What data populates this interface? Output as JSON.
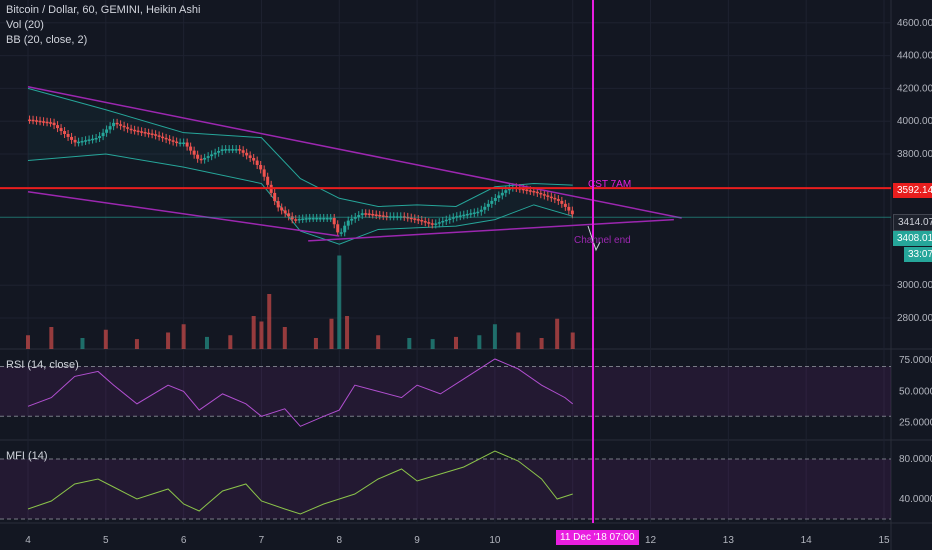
{
  "legend": {
    "title": "Bitcoin / Dollar, 60, GEMINI, Heikin Ashi",
    "vol": "Vol (20)",
    "bb": "BB (20, close, 2)"
  },
  "colors": {
    "background": "#131722",
    "up": "#26a69a",
    "down": "#ef5350",
    "bb": "#26a69a",
    "trendline": "#9c27b0",
    "resistance": "#e91e1e",
    "vline": "#e91ee0",
    "rsi": "#b14fd0",
    "mfi": "#8bc34a"
  },
  "chart_data": [
    {
      "type": "candlestick",
      "title": "Bitcoin / Dollar, 60, GEMINI, Heikin Ashi",
      "x_ticks": [
        "4",
        "5",
        "6",
        "7",
        "8",
        "9",
        "10",
        "11",
        "12",
        "13",
        "14",
        "15"
      ],
      "y_ticks": [
        "4600.00",
        "4400.00",
        "4200.00",
        "4000.00",
        "3800.00",
        "3000.00",
        "2800.00"
      ],
      "ylim": [
        2700,
        4700
      ],
      "resistance_level": 3592.14,
      "current_price_labels": [
        "3414.07",
        "3408.01"
      ],
      "countdown": "33:07",
      "annotations": [
        "CST 7AM",
        "Channel end"
      ],
      "highlighted_time": "11 Dec '18  07:00",
      "close_path": [
        [
          4.0,
          4010
        ],
        [
          4.3,
          3990
        ],
        [
          4.6,
          3870
        ],
        [
          4.9,
          3900
        ],
        [
          5.1,
          3990
        ],
        [
          5.3,
          3950
        ],
        [
          5.6,
          3920
        ],
        [
          5.9,
          3870
        ],
        [
          6.0,
          3870
        ],
        [
          6.2,
          3760
        ],
        [
          6.5,
          3830
        ],
        [
          6.7,
          3830
        ],
        [
          6.9,
          3760
        ],
        [
          7.0,
          3700
        ],
        [
          7.2,
          3480
        ],
        [
          7.4,
          3400
        ],
        [
          7.6,
          3410
        ],
        [
          7.9,
          3410
        ],
        [
          8.0,
          3300
        ],
        [
          8.1,
          3390
        ],
        [
          8.3,
          3440
        ],
        [
          8.6,
          3420
        ],
        [
          8.8,
          3420
        ],
        [
          9.0,
          3400
        ],
        [
          9.2,
          3370
        ],
        [
          9.5,
          3420
        ],
        [
          9.8,
          3450
        ],
        [
          10.0,
          3530
        ],
        [
          10.2,
          3600
        ],
        [
          10.5,
          3570
        ],
        [
          10.8,
          3520
        ],
        [
          10.9,
          3480
        ],
        [
          11.0,
          3430
        ]
      ],
      "bb_upper": [
        [
          4,
          4200
        ],
        [
          5,
          4070
        ],
        [
          6,
          3930
        ],
        [
          7,
          3900
        ],
        [
          7.5,
          3650
        ],
        [
          8,
          3530
        ],
        [
          8.5,
          3480
        ],
        [
          9,
          3490
        ],
        [
          9.5,
          3480
        ],
        [
          10,
          3600
        ],
        [
          10.5,
          3620
        ],
        [
          11,
          3610
        ]
      ],
      "bb_lower": [
        [
          4,
          3760
        ],
        [
          5,
          3800
        ],
        [
          6,
          3720
        ],
        [
          7,
          3620
        ],
        [
          7.5,
          3330
        ],
        [
          8,
          3250
        ],
        [
          8.5,
          3340
        ],
        [
          9,
          3350
        ],
        [
          9.5,
          3360
        ],
        [
          10,
          3400
        ],
        [
          10.5,
          3490
        ],
        [
          11,
          3420
        ]
      ],
      "trendlines": [
        {
          "from": [
            4.0,
            4210
          ],
          "to": [
            12.4,
            3410
          ]
        },
        {
          "from": [
            4.0,
            3570
          ],
          "to": [
            8.0,
            3300
          ]
        },
        {
          "from": [
            7.6,
            3270
          ],
          "to": [
            12.3,
            3400
          ]
        }
      ],
      "volume": [
        [
          4.0,
          25,
          "down"
        ],
        [
          4.3,
          40,
          "down"
        ],
        [
          4.7,
          20,
          "up"
        ],
        [
          5.0,
          35,
          "down"
        ],
        [
          5.4,
          18,
          "down"
        ],
        [
          5.8,
          30,
          "down"
        ],
        [
          6.0,
          45,
          "down"
        ],
        [
          6.3,
          22,
          "up"
        ],
        [
          6.6,
          25,
          "down"
        ],
        [
          6.9,
          60,
          "down"
        ],
        [
          7.0,
          50,
          "down"
        ],
        [
          7.1,
          100,
          "down"
        ],
        [
          7.3,
          40,
          "down"
        ],
        [
          7.7,
          20,
          "down"
        ],
        [
          7.9,
          55,
          "down"
        ],
        [
          8.0,
          170,
          "up"
        ],
        [
          8.1,
          60,
          "down"
        ],
        [
          8.5,
          25,
          "down"
        ],
        [
          8.9,
          20,
          "up"
        ],
        [
          9.2,
          18,
          "up"
        ],
        [
          9.5,
          22,
          "down"
        ],
        [
          9.8,
          25,
          "up"
        ],
        [
          10.0,
          45,
          "up"
        ],
        [
          10.3,
          30,
          "down"
        ],
        [
          10.6,
          20,
          "down"
        ],
        [
          10.8,
          55,
          "down"
        ],
        [
          11.0,
          30,
          "down"
        ]
      ]
    },
    {
      "type": "line",
      "title": "RSI (14, close)",
      "y_ticks": [
        "75.0000",
        "50.0000",
        "25.0000"
      ],
      "ylim": [
        15,
        80
      ],
      "bands": [
        70,
        30
      ],
      "values": [
        [
          4.0,
          38
        ],
        [
          4.3,
          45
        ],
        [
          4.6,
          62
        ],
        [
          4.9,
          66
        ],
        [
          5.1,
          55
        ],
        [
          5.4,
          40
        ],
        [
          5.8,
          55
        ],
        [
          6.0,
          50
        ],
        [
          6.2,
          35
        ],
        [
          6.5,
          48
        ],
        [
          6.8,
          40
        ],
        [
          7.0,
          30
        ],
        [
          7.3,
          36
        ],
        [
          7.5,
          22
        ],
        [
          7.8,
          30
        ],
        [
          8.0,
          35
        ],
        [
          8.2,
          55
        ],
        [
          8.5,
          50
        ],
        [
          8.8,
          45
        ],
        [
          9.0,
          55
        ],
        [
          9.3,
          48
        ],
        [
          9.6,
          60
        ],
        [
          10.0,
          76
        ],
        [
          10.3,
          68
        ],
        [
          10.6,
          55
        ],
        [
          10.9,
          45
        ],
        [
          11.0,
          40
        ]
      ]
    },
    {
      "type": "line",
      "title": "MFI (14)",
      "y_ticks": [
        "80.0000",
        "40.0000"
      ],
      "ylim": [
        20,
        95
      ],
      "bands": [
        80,
        20
      ],
      "values": [
        [
          4.0,
          30
        ],
        [
          4.3,
          38
        ],
        [
          4.6,
          55
        ],
        [
          4.9,
          60
        ],
        [
          5.1,
          52
        ],
        [
          5.4,
          40
        ],
        [
          5.8,
          50
        ],
        [
          6.0,
          35
        ],
        [
          6.2,
          28
        ],
        [
          6.5,
          48
        ],
        [
          6.8,
          55
        ],
        [
          7.0,
          38
        ],
        [
          7.3,
          30
        ],
        [
          7.5,
          25
        ],
        [
          7.8,
          35
        ],
        [
          8.0,
          40
        ],
        [
          8.2,
          45
        ],
        [
          8.5,
          60
        ],
        [
          8.8,
          70
        ],
        [
          9.0,
          58
        ],
        [
          9.3,
          65
        ],
        [
          9.6,
          72
        ],
        [
          10.0,
          88
        ],
        [
          10.3,
          78
        ],
        [
          10.6,
          60
        ],
        [
          10.8,
          40
        ],
        [
          11.0,
          45
        ]
      ]
    }
  ]
}
